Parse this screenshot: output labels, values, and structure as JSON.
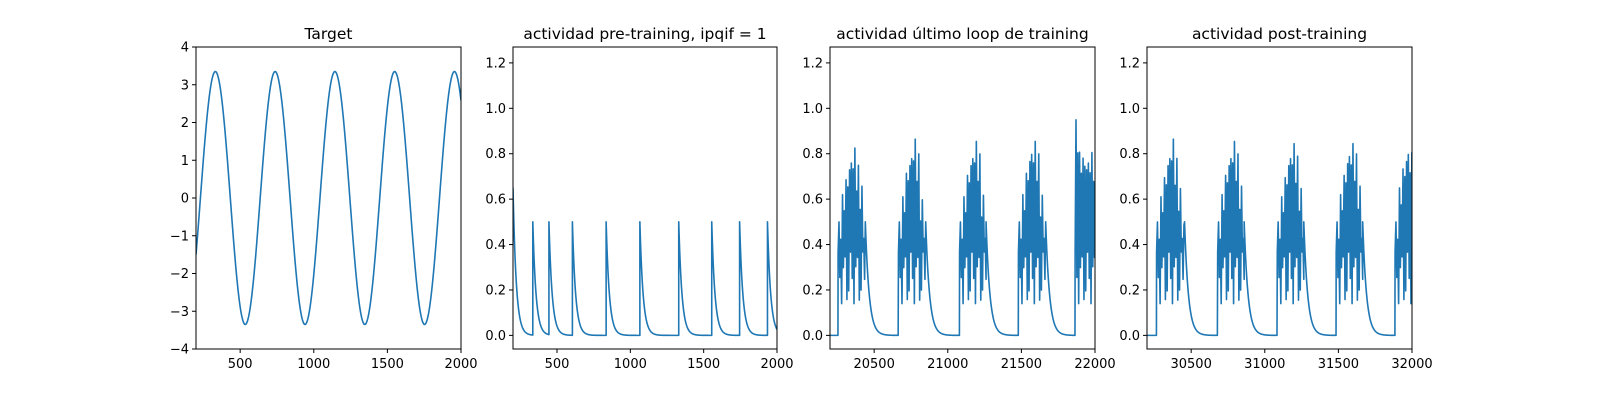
{
  "figure": {
    "background": "#ffffff",
    "line_color": "#1f77b4"
  },
  "chart_data": [
    {
      "type": "line",
      "title": "Target",
      "xlabel": "",
      "ylabel": "",
      "xlim": [
        200,
        2000
      ],
      "ylim": [
        -4,
        4
      ],
      "xticks": [
        500,
        1000,
        1500,
        2000
      ],
      "yticks": [
        -4,
        -3,
        -2,
        -1,
        0,
        1,
        2,
        3,
        4
      ],
      "grid": false,
      "series": [
        {
          "kind": "sine",
          "amplitude": 3.35,
          "period": 406,
          "phase_x": 230,
          "x_start": 200,
          "x_end": 2000
        }
      ]
    },
    {
      "type": "line",
      "title": "actividad pre-training, ipqif = 1",
      "xlabel": "",
      "ylabel": "",
      "xlim": [
        200,
        2000
      ],
      "ylim": [
        -0.06,
        1.27
      ],
      "xticks": [
        500,
        1000,
        1500,
        2000
      ],
      "yticks": [
        0.0,
        0.2,
        0.4,
        0.6,
        0.8,
        1.0,
        1.2
      ],
      "grid": false,
      "series": [
        {
          "kind": "spikes",
          "start_value": 0.65,
          "decay": 22,
          "peak": 0.5,
          "spike_times": [
            335,
            445,
            605,
            835,
            1065,
            1330,
            1555,
            1745,
            1935
          ]
        }
      ]
    },
    {
      "type": "line",
      "title": "actividad último loop de training",
      "xlabel": "",
      "ylabel": "",
      "xlim": [
        20200,
        22000
      ],
      "ylim": [
        -0.06,
        1.27
      ],
      "xticks": [
        20500,
        21000,
        21500,
        22000
      ],
      "yticks": [
        0.0,
        0.2,
        0.4,
        0.6,
        0.8,
        1.0,
        1.2
      ],
      "grid": false,
      "series": [
        {
          "kind": "bursts",
          "baseline": 0.0,
          "decay": 26,
          "bursts": [
            {
              "start": 20255,
              "end": 20440,
              "spacing": 6,
              "peaks": [
                0.5,
                0.63,
                0.72,
                0.8,
                0.84,
                0.75,
                0.66
              ]
            },
            {
              "start": 20665,
              "end": 20850,
              "spacing": 6,
              "peaks": [
                0.5,
                0.62,
                0.75,
                0.82,
                0.88,
                0.8,
                0.6
              ]
            },
            {
              "start": 21080,
              "end": 21260,
              "spacing": 6,
              "peaks": [
                0.5,
                0.62,
                0.74,
                0.82,
                0.87,
                0.8,
                0.62
              ]
            },
            {
              "start": 21480,
              "end": 21665,
              "spacing": 6,
              "peaks": [
                0.5,
                0.63,
                0.75,
                0.84,
                0.87,
                0.8,
                0.62
              ]
            },
            {
              "start": 21865,
              "end": 22000,
              "spacing": 6,
              "peaks": [
                0.95,
                0.82,
                0.82,
                0.8,
                0.82,
                0.8,
                0.78
              ]
            }
          ]
        }
      ]
    },
    {
      "type": "line",
      "title": "actividad post-training",
      "xlabel": "",
      "ylabel": "",
      "xlim": [
        30200,
        32000
      ],
      "ylim": [
        -0.06,
        1.27
      ],
      "xticks": [
        30500,
        31000,
        31500,
        32000
      ],
      "yticks": [
        0.0,
        0.2,
        0.4,
        0.6,
        0.8,
        1.0,
        1.2
      ],
      "grid": false,
      "series": [
        {
          "kind": "bursts",
          "baseline": 0.0,
          "decay": 26,
          "bursts": [
            {
              "start": 30265,
              "end": 30455,
              "spacing": 6,
              "peaks": [
                0.5,
                0.62,
                0.73,
                0.82,
                0.88,
                0.78,
                0.65
              ]
            },
            {
              "start": 30680,
              "end": 30860,
              "spacing": 6,
              "peaks": [
                0.5,
                0.63,
                0.74,
                0.82,
                0.87,
                0.8,
                0.66
              ]
            },
            {
              "start": 31085,
              "end": 31265,
              "spacing": 6,
              "peaks": [
                0.5,
                0.62,
                0.73,
                0.82,
                0.86,
                0.79,
                0.65
              ]
            },
            {
              "start": 31485,
              "end": 31665,
              "spacing": 6,
              "peaks": [
                0.5,
                0.63,
                0.74,
                0.83,
                0.86,
                0.8,
                0.66
              ]
            },
            {
              "start": 31885,
              "end": 32000,
              "spacing": 6,
              "peaks": [
                0.5,
                0.66,
                0.77,
                0.84,
                0.82,
                0.8,
                0.78
              ]
            }
          ]
        }
      ]
    }
  ]
}
